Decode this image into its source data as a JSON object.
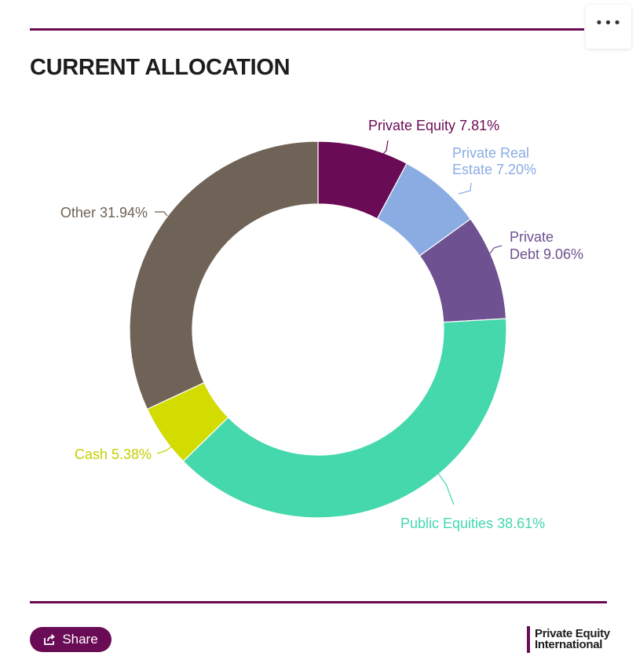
{
  "title": "CURRENT ALLOCATION",
  "menu_icon": "more-horizontal-icon",
  "footer": {
    "share_label": "Share",
    "share_icon": "share-icon",
    "logo_line1": "Private Equity",
    "logo_line2": "International"
  },
  "colors": {
    "accent": "#6a0b55"
  },
  "chart_data": {
    "type": "pie",
    "donut": true,
    "title": "CURRENT ALLOCATION",
    "slices": [
      {
        "label": "Private Equity 7.81%",
        "name": "Private Equity",
        "value": 7.81,
        "color": "#6a0b55",
        "text_color": "#6a0b55"
      },
      {
        "label": "Private Real Estate 7.20%",
        "name": "Private Real Estate",
        "value": 7.2,
        "color": "#8aace3",
        "text_color": "#8aace3"
      },
      {
        "label": "Private Debt 9.06%",
        "name": "Private Debt",
        "value": 9.06,
        "color": "#6e5190",
        "text_color": "#6e5190"
      },
      {
        "label": "Public Equities 38.61%",
        "name": "Public Equities",
        "value": 38.61,
        "color": "#45d8ac",
        "text_color": "#45d8ac"
      },
      {
        "label": "Cash 5.38%",
        "name": "Cash",
        "value": 5.38,
        "color": "#d2dc00",
        "text_color": "#c4d000"
      },
      {
        "label": "Other 31.94%",
        "name": "Other",
        "value": 31.94,
        "color": "#6f6256",
        "text_color": "#6f6256"
      }
    ]
  }
}
